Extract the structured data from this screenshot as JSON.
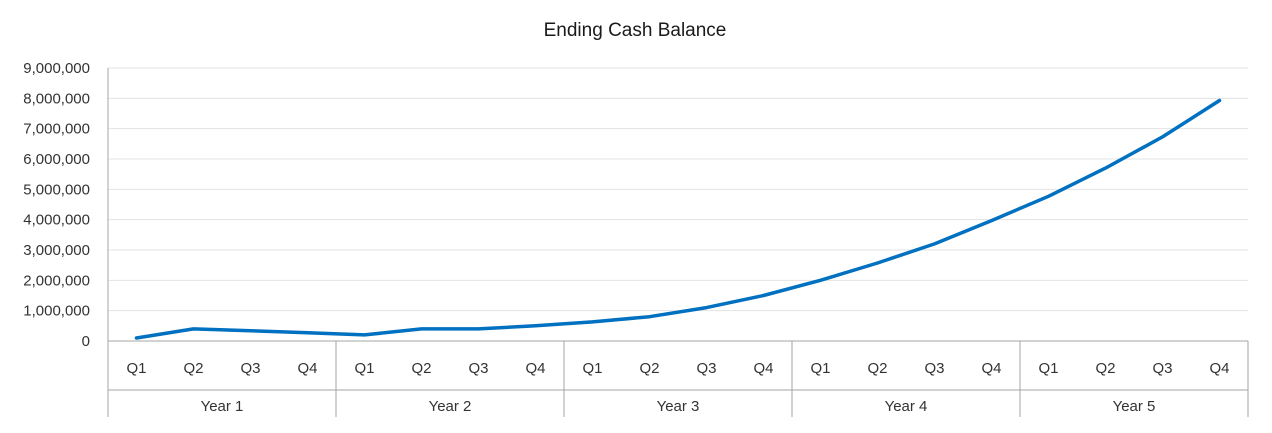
{
  "chart_data": {
    "type": "line",
    "title": "Ending Cash Balance",
    "xlabel": "",
    "ylabel": "",
    "ylim": [
      0,
      9000000
    ],
    "yticks": [
      "0",
      "1,000,000",
      "2,000,000",
      "3,000,000",
      "4,000,000",
      "5,000,000",
      "6,000,000",
      "7,000,000",
      "8,000,000",
      "9,000,000"
    ],
    "grid": true,
    "legend": "none",
    "categories": [
      "Q1",
      "Q2",
      "Q3",
      "Q4",
      "Q1",
      "Q2",
      "Q3",
      "Q4",
      "Q1",
      "Q2",
      "Q3",
      "Q4",
      "Q1",
      "Q2",
      "Q3",
      "Q4",
      "Q1",
      "Q2",
      "Q3",
      "Q4"
    ],
    "groups": [
      {
        "label": "Year 1",
        "count": 4
      },
      {
        "label": "Year 2",
        "count": 4
      },
      {
        "label": "Year 3",
        "count": 4
      },
      {
        "label": "Year 4",
        "count": 4
      },
      {
        "label": "Year 5",
        "count": 4
      }
    ],
    "series": [
      {
        "color": "#0070c0",
        "values": [
          100000,
          400000,
          340000,
          270000,
          200000,
          400000,
          400000,
          500000,
          630000,
          800000,
          1100000,
          1500000,
          2000000,
          2570000,
          3200000,
          3970000,
          4770000,
          5700000,
          6730000,
          7930000
        ]
      }
    ]
  }
}
